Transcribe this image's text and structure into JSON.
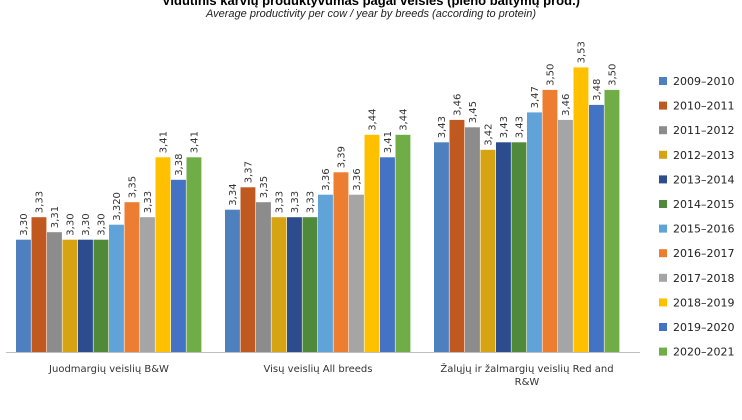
{
  "title": "Vidutinis karvių produktyvumas pagal veisles (pieno baltymų prod.)",
  "subtitle": "Average productivity per cow / year by breeds (according to protein)",
  "chart_data": {
    "type": "bar",
    "title": "Vidutinis karvių produktyvumas pagal veisles (pieno baltymų prod.)",
    "subtitle": "Average productivity per cow / year by breeds (according to protein)",
    "xlabel": "",
    "ylabel": "",
    "ylim": [
      3.15,
      3.58
    ],
    "grid": false,
    "legend_position": "right",
    "categories": [
      [
        "Juodmargių veislių B&W"
      ],
      [
        "Visų veislių All breeds"
      ],
      [
        "Žalųjų ir žalmargių veislių Red and",
        "R&W"
      ]
    ],
    "series": [
      {
        "name": "2009–2010",
        "color": "#4e7fbf",
        "values": [
          3.3,
          3.34,
          3.43
        ],
        "labels": [
          "3,30",
          "3,34",
          "3,43"
        ]
      },
      {
        "name": "2010–2011",
        "color": "#c0591f",
        "values": [
          3.33,
          3.37,
          3.46
        ],
        "labels": [
          "3,33",
          "3,37",
          "3,46"
        ]
      },
      {
        "name": "2011–2012",
        "color": "#8c8c8c",
        "values": [
          3.31,
          3.35,
          3.45
        ],
        "labels": [
          "3,31",
          "3,35",
          "3,45"
        ]
      },
      {
        "name": "2012–2013",
        "color": "#d6a412",
        "values": [
          3.3,
          3.33,
          3.42
        ],
        "labels": [
          "3,30",
          "3,33",
          "3,42"
        ]
      },
      {
        "name": "2013–2014",
        "color": "#2c4c8e",
        "values": [
          3.3,
          3.33,
          3.43
        ],
        "labels": [
          "3,30",
          "3,33",
          "3,43"
        ]
      },
      {
        "name": "2014–2015",
        "color": "#4e8a3a",
        "values": [
          3.3,
          3.33,
          3.43
        ],
        "labels": [
          "3,30",
          "3,33",
          "3,43"
        ]
      },
      {
        "name": "2015–2016",
        "color": "#5fa3d9",
        "values": [
          3.32,
          3.36,
          3.47
        ],
        "labels": [
          "3,320",
          "3,36",
          "3,47"
        ]
      },
      {
        "name": "2016–2017",
        "color": "#ed7d31",
        "values": [
          3.35,
          3.39,
          3.5
        ],
        "labels": [
          "3,35",
          "3,39",
          "3,50"
        ]
      },
      {
        "name": "2017–2018",
        "color": "#a5a5a5",
        "values": [
          3.33,
          3.36,
          3.46
        ],
        "labels": [
          "3,33",
          "3,36",
          "3,46"
        ]
      },
      {
        "name": "2018–2019",
        "color": "#ffc000",
        "values": [
          3.41,
          3.44,
          3.53
        ],
        "labels": [
          "3,41",
          "3,44",
          "3,53"
        ]
      },
      {
        "name": "2019–2020",
        "color": "#4472c4",
        "values": [
          3.38,
          3.41,
          3.48
        ],
        "labels": [
          "3,38",
          "3,41",
          "3,48"
        ]
      },
      {
        "name": "2020–2021",
        "color": "#70ad47",
        "values": [
          3.41,
          3.44,
          3.5
        ],
        "labels": [
          "3,41",
          "3,44",
          "3,50"
        ]
      }
    ]
  }
}
